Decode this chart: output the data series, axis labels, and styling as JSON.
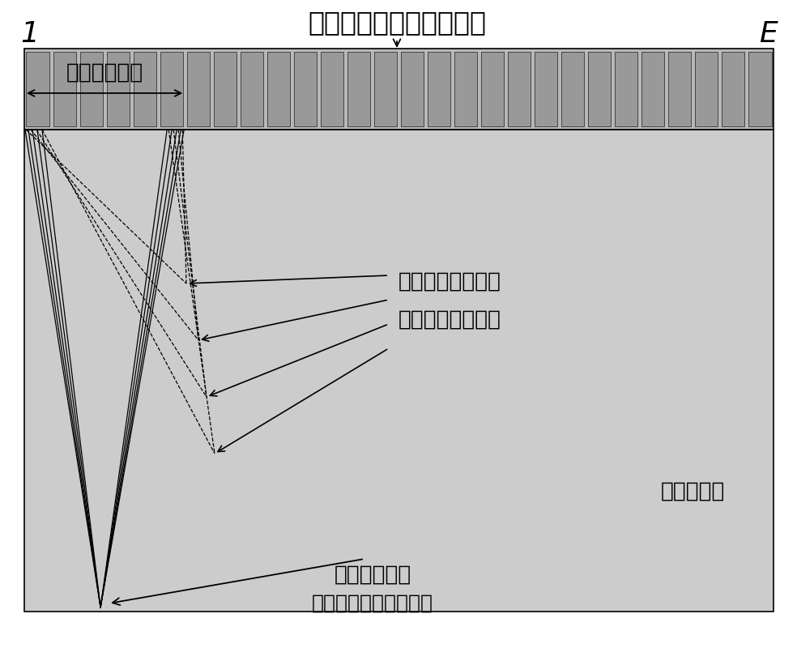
{
  "title": "相控阵直探头各阵元晶片",
  "label_l": "1",
  "label_r": "E",
  "workpiece_label": "被检测工件",
  "aperture_label": "一个阵列孔径",
  "receive_label_line1": "接收动态深度聚焦",
  "receive_label_line2": "的各聚焦深度位置",
  "transmit_label_line1": "发射聚焦位置",
  "transmit_label_line2": "（被检测工件下表面）",
  "fig_width": 9.84,
  "fig_height": 8.0,
  "bg_color": "#ffffff",
  "array_bg_color": "#b8b8b8",
  "crystal_color": "#999999",
  "workpiece_color": "#cccccc",
  "n_crystals": 28,
  "aperture_crystals": 6,
  "solid_line_color": "#000000",
  "dashed_line_color": "#000000"
}
